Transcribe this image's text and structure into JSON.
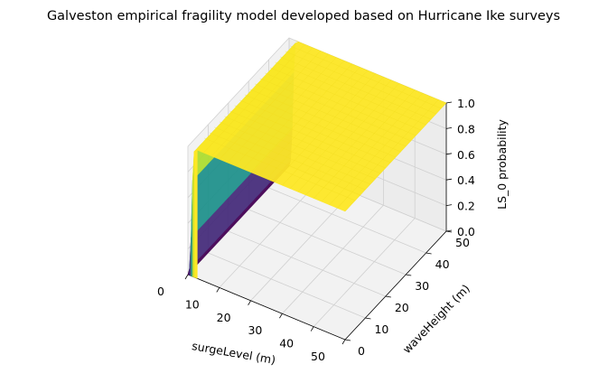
{
  "chart_data": {
    "type": "surface3d",
    "title": "Galveston empirical fragility model developed based on Hurricane Ike surveys",
    "xlabel": "surgeLevel (m)",
    "ylabel": "waveHeight (m)",
    "zlabel": "LS_0 probability",
    "xlim": [
      0,
      50
    ],
    "ylim": [
      0,
      50
    ],
    "zlim": [
      0,
      1
    ],
    "xticks": [
      "0",
      "10",
      "20",
      "30",
      "40",
      "50"
    ],
    "yticks": [
      "0",
      "10",
      "20",
      "30",
      "40",
      "50"
    ],
    "zticks": [
      "0.0",
      "0.2",
      "0.4",
      "0.6",
      "0.8",
      "1.0"
    ],
    "colormap": "viridis",
    "surface": {
      "description": "Probability rises steeply near surgeLevel 0-2 m and saturates at 1.0 elsewhere",
      "x": [
        0,
        0.5,
        1,
        1.5,
        2,
        3,
        5,
        10,
        20,
        30,
        40,
        50
      ],
      "z": [
        0.0,
        0.05,
        0.3,
        0.75,
        0.98,
        1.0,
        1.0,
        1.0,
        1.0,
        1.0,
        1.0,
        1.0
      ]
    }
  },
  "colors": {
    "pane": "#f2f2f2",
    "pane_dark": "#ececec",
    "grid": "#d0d0d0",
    "surface_top": "#fde725",
    "edge": "#000000"
  }
}
